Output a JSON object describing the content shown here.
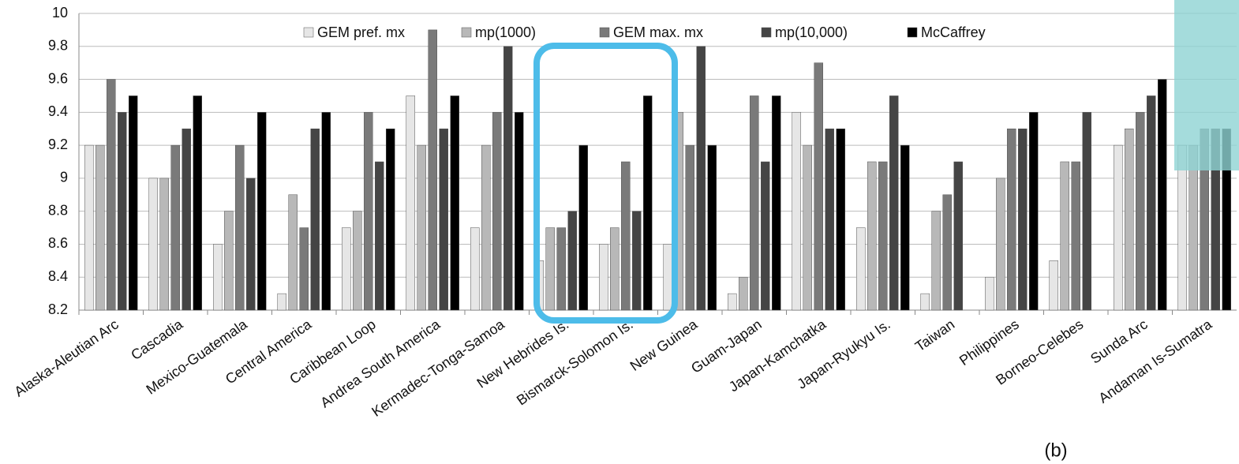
{
  "chart_data": {
    "type": "bar",
    "categories": [
      "Alaska-Aleutian Arc",
      "Cascadia",
      "Mexico-Guatemala",
      "Central America",
      "Caribbean Loop",
      "Andrea South America",
      "Kermadec-Tonga-Samoa",
      "New Hebrides Is.",
      "Bismarck-Solomon Is.",
      "New Guinea",
      "Guam-Japan",
      "Japan-Kamchatka",
      "Japan-Ryukyu Is.",
      "Taiwan",
      "Philippines",
      "Borneo-Celebes",
      "Sunda Arc",
      "Andaman Is-Sumatra"
    ],
    "series": [
      {
        "name": "GEM pref. mx",
        "color": "#e6e6e6",
        "values": [
          9.2,
          9.0,
          8.6,
          8.3,
          8.7,
          9.5,
          8.7,
          8.5,
          8.6,
          8.6,
          8.3,
          9.4,
          8.7,
          8.3,
          8.4,
          8.5,
          9.2,
          9.2
        ]
      },
      {
        "name": "mp(1000)",
        "color": "#b8b8b8",
        "values": [
          9.2,
          9.0,
          8.8,
          8.9,
          8.8,
          9.2,
          9.2,
          8.7,
          8.7,
          9.4,
          8.4,
          9.2,
          9.1,
          8.8,
          9.0,
          9.1,
          9.3,
          9.2
        ]
      },
      {
        "name": "GEM max. mx",
        "color": "#7a7a7a",
        "values": [
          9.6,
          9.2,
          9.2,
          8.7,
          9.4,
          9.9,
          9.4,
          8.7,
          9.1,
          9.2,
          9.5,
          9.7,
          9.1,
          8.9,
          9.3,
          9.1,
          9.4,
          9.3
        ]
      },
      {
        "name": "mp(10,000)",
        "color": "#454545",
        "values": [
          9.4,
          9.3,
          9.0,
          9.3,
          9.1,
          9.3,
          9.8,
          8.8,
          8.8,
          9.8,
          9.1,
          9.3,
          9.5,
          9.1,
          9.3,
          9.4,
          9.5,
          9.3
        ]
      },
      {
        "name": "McCaffrey",
        "color": "#000000",
        "values": [
          9.5,
          9.5,
          9.4,
          9.4,
          9.3,
          9.5,
          9.4,
          9.2,
          9.5,
          9.2,
          9.5,
          9.3,
          9.2,
          null,
          9.4,
          null,
          9.6,
          9.3
        ]
      }
    ],
    "ylim": [
      8.2,
      10
    ],
    "yticks": [
      8.2,
      8.4,
      8.6,
      8.8,
      9,
      9.2,
      9.4,
      9.6,
      9.8,
      10
    ],
    "grid": true,
    "legend": "top",
    "annotation": "(b)"
  }
}
